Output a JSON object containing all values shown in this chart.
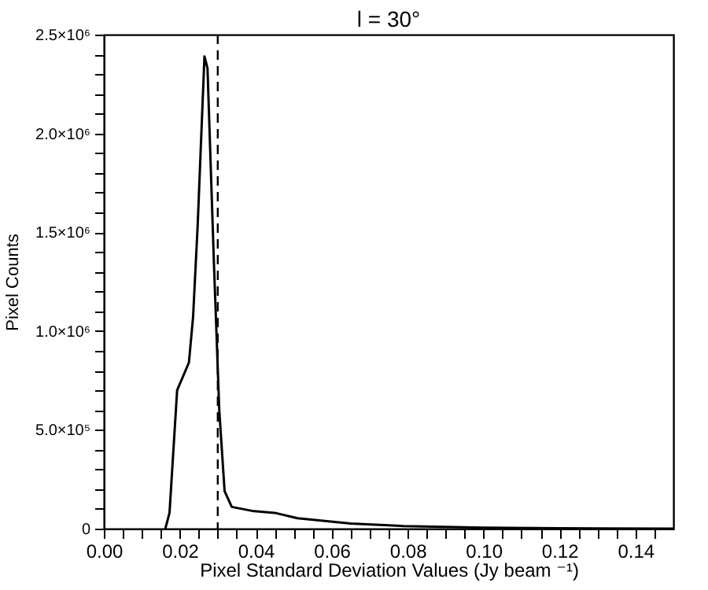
{
  "chart_data": {
    "type": "line",
    "title": "l = 30°",
    "xlabel": "Pixel Standard Deviation Values (Jy beam ⁻¹)",
    "ylabel": "Pixel Counts",
    "x": [
      0.0162,
      0.0173,
      0.0193,
      0.0224,
      0.0235,
      0.0247,
      0.0265,
      0.0273,
      0.029,
      0.0304,
      0.0318,
      0.0337,
      0.039,
      0.045,
      0.051,
      0.065,
      0.079,
      0.1,
      0.12,
      0.15
    ],
    "series": [
      {
        "color": "#000000",
        "values": [
          0,
          80000,
          700000,
          840000,
          1070000,
          1530000,
          2390000,
          2330000,
          1340000,
          600000,
          190000,
          110000,
          90000,
          80000,
          53000,
          26000,
          13000,
          5000,
          2000,
          0
        ]
      }
    ],
    "xlim": [
      0,
      0.15
    ],
    "ylim": [
      0,
      2500000
    ],
    "xticks": [
      {
        "value": 0,
        "label": "0.00"
      },
      {
        "value": 0.005,
        "label": null
      },
      {
        "value": 0.01,
        "label": null
      },
      {
        "value": 0.015,
        "label": null
      },
      {
        "value": 0.02,
        "label": "0.02"
      },
      {
        "value": 0.025,
        "label": null
      },
      {
        "value": 0.03,
        "label": null
      },
      {
        "value": 0.035,
        "label": null
      },
      {
        "value": 0.04,
        "label": "0.04"
      },
      {
        "value": 0.045,
        "label": null
      },
      {
        "value": 0.05,
        "label": null
      },
      {
        "value": 0.055,
        "label": null
      },
      {
        "value": 0.06,
        "label": "0.06"
      },
      {
        "value": 0.065,
        "label": null
      },
      {
        "value": 0.07,
        "label": null
      },
      {
        "value": 0.075,
        "label": null
      },
      {
        "value": 0.08,
        "label": "0.08"
      },
      {
        "value": 0.085,
        "label": null
      },
      {
        "value": 0.09,
        "label": null
      },
      {
        "value": 0.095,
        "label": null
      },
      {
        "value": 0.1,
        "label": "0.10"
      },
      {
        "value": 0.105,
        "label": null
      },
      {
        "value": 0.11,
        "label": null
      },
      {
        "value": 0.115,
        "label": null
      },
      {
        "value": 0.12,
        "label": "0.12"
      },
      {
        "value": 0.125,
        "label": null
      },
      {
        "value": 0.13,
        "label": null
      },
      {
        "value": 0.135,
        "label": null
      },
      {
        "value": 0.14,
        "label": "0.14"
      },
      {
        "value": 0.145,
        "label": null
      }
    ],
    "yticks": [
      {
        "value": 0,
        "label": "0"
      },
      {
        "value": 100000,
        "label": null
      },
      {
        "value": 200000,
        "label": null
      },
      {
        "value": 300000,
        "label": null
      },
      {
        "value": 400000,
        "label": null
      },
      {
        "value": 500000,
        "label": "5.0×10⁵"
      },
      {
        "value": 600000,
        "label": null
      },
      {
        "value": 700000,
        "label": null
      },
      {
        "value": 800000,
        "label": null
      },
      {
        "value": 900000,
        "label": null
      },
      {
        "value": 1000000,
        "label": "1.0×10⁶"
      },
      {
        "value": 1100000,
        "label": null
      },
      {
        "value": 1200000,
        "label": null
      },
      {
        "value": 1300000,
        "label": null
      },
      {
        "value": 1400000,
        "label": null
      },
      {
        "value": 1500000,
        "label": "1.5×10⁶"
      },
      {
        "value": 1600000,
        "label": null
      },
      {
        "value": 1700000,
        "label": null
      },
      {
        "value": 1800000,
        "label": null
      },
      {
        "value": 1900000,
        "label": null
      },
      {
        "value": 2000000,
        "label": "2.0×10⁶"
      },
      {
        "value": 2100000,
        "label": null
      },
      {
        "value": 2200000,
        "label": null
      },
      {
        "value": 2300000,
        "label": null
      },
      {
        "value": 2400000,
        "label": null
      },
      {
        "value": 2500000,
        "label": "2.5×10⁶"
      }
    ],
    "ref_lines": [
      {
        "axis": "x",
        "value": 0.03,
        "color": "#000000",
        "line_style": "dashed"
      }
    ],
    "grid": false,
    "marker": "none",
    "line_style": "solid"
  }
}
